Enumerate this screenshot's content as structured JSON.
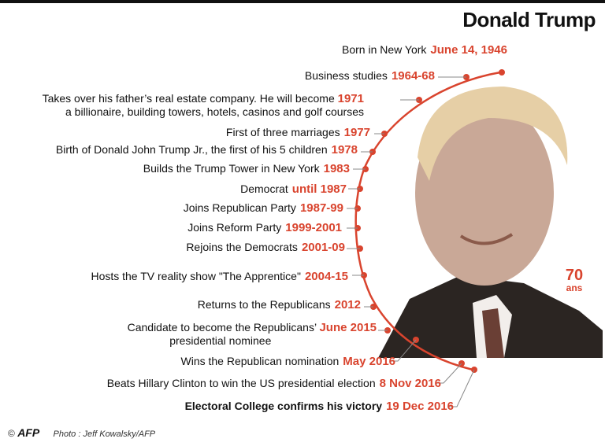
{
  "title": "Donald Trump",
  "age": {
    "value": "70",
    "unit": "ans"
  },
  "footer": {
    "copyright": "©",
    "logo": "AFP",
    "credit": "Photo : Jeff Kowalsky/AFP"
  },
  "events": [
    {
      "text": "Born in New York",
      "date": "June 14, 1946"
    },
    {
      "text": "Business studies",
      "date": "1964-68"
    },
    {
      "text": "Takes over his father’s real estate company. He will become",
      "text2": "a billionaire, building towers, hotels, casinos and golf courses",
      "date": "1971"
    },
    {
      "text": "First of three marriages",
      "date": "1977"
    },
    {
      "text": "Birth of Donald John Trump Jr., the first of his 5 children",
      "date": "1978"
    },
    {
      "text": "Builds the Trump Tower in New York",
      "date": "1983"
    },
    {
      "text": "Democrat",
      "date": "until 1987"
    },
    {
      "text": "Joins Republican Party",
      "date": "1987-99"
    },
    {
      "text": "Joins Reform Party",
      "date": "1999-2001"
    },
    {
      "text": "Rejoins the Democrats",
      "date": "2001-09"
    },
    {
      "text": "Hosts the TV reality show \"The Apprentice\"",
      "date": "2004-15"
    },
    {
      "text": "Returns to the Republicans",
      "date": "2012"
    },
    {
      "text": "Candidate to become the Republicans’",
      "text2": "presidential nominee",
      "date": "June 2015"
    },
    {
      "text": "Wins the Republican nomination",
      "date": "May 2016"
    },
    {
      "text": "Beats Hillary Clinton to win the US presidential election",
      "date": "8 Nov 2016"
    },
    {
      "text": "Electoral College confirms his victory",
      "date": "19 Dec 2016"
    }
  ],
  "colors": {
    "accent": "#d9442e",
    "text": "#111111",
    "photo_bg": "#e9e2dd"
  }
}
